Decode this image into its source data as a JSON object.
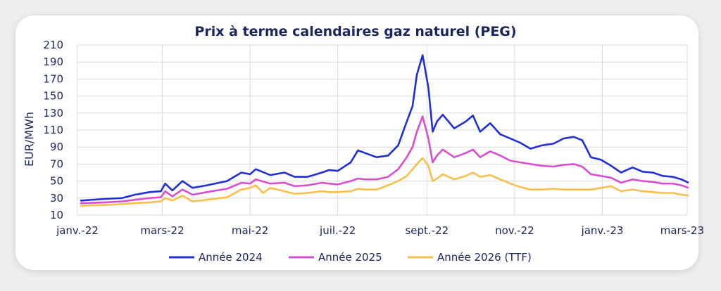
{
  "chart_data": {
    "type": "line",
    "title": "Prix à terme calendaires gaz naturel (PEG)",
    "xlabel": "",
    "ylabel": "EUR/MWh",
    "ylim": [
      10,
      210
    ],
    "yticks": [
      10,
      30,
      50,
      70,
      90,
      110,
      130,
      150,
      170,
      190,
      210
    ],
    "xticks": [
      {
        "date": "2022-01-01",
        "label": "janv.-22"
      },
      {
        "date": "2022-03-01",
        "label": "mars-22"
      },
      {
        "date": "2022-05-01",
        "label": "mai-22"
      },
      {
        "date": "2022-07-01",
        "label": "juil.-22"
      },
      {
        "date": "2022-09-01",
        "label": "sept.-22"
      },
      {
        "date": "2022-11-01",
        "label": "nov.-22"
      },
      {
        "date": "2023-01-01",
        "label": "janv.-23"
      },
      {
        "date": "2023-03-01",
        "label": "mars-23"
      }
    ],
    "grid": true,
    "legend_position": "bottom",
    "series": [
      {
        "name": "Année 2024",
        "color": "#1f2fd8",
        "points": [
          [
            "2022-01-03",
            27
          ],
          [
            "2022-01-20",
            29
          ],
          [
            "2022-02-01",
            30
          ],
          [
            "2022-02-10",
            34
          ],
          [
            "2022-02-20",
            37
          ],
          [
            "2022-02-28",
            38
          ],
          [
            "2022-03-03",
            47
          ],
          [
            "2022-03-08",
            39
          ],
          [
            "2022-03-15",
            50
          ],
          [
            "2022-03-22",
            42
          ],
          [
            "2022-04-01",
            45
          ],
          [
            "2022-04-15",
            50
          ],
          [
            "2022-04-25",
            60
          ],
          [
            "2022-05-01",
            58
          ],
          [
            "2022-05-05",
            64
          ],
          [
            "2022-05-15",
            57
          ],
          [
            "2022-05-25",
            60
          ],
          [
            "2022-06-01",
            55
          ],
          [
            "2022-06-10",
            55
          ],
          [
            "2022-06-20",
            60
          ],
          [
            "2022-06-25",
            63
          ],
          [
            "2022-07-01",
            62
          ],
          [
            "2022-07-10",
            72
          ],
          [
            "2022-07-15",
            86
          ],
          [
            "2022-07-20",
            83
          ],
          [
            "2022-07-28",
            78
          ],
          [
            "2022-08-05",
            80
          ],
          [
            "2022-08-12",
            92
          ],
          [
            "2022-08-18",
            120
          ],
          [
            "2022-08-22",
            138
          ],
          [
            "2022-08-25",
            175
          ],
          [
            "2022-08-29",
            198
          ],
          [
            "2022-09-02",
            160
          ],
          [
            "2022-09-05",
            108
          ],
          [
            "2022-09-08",
            120
          ],
          [
            "2022-09-12",
            128
          ],
          [
            "2022-09-20",
            112
          ],
          [
            "2022-09-28",
            120
          ],
          [
            "2022-10-03",
            127
          ],
          [
            "2022-10-08",
            108
          ],
          [
            "2022-10-15",
            118
          ],
          [
            "2022-10-22",
            105
          ],
          [
            "2022-10-29",
            100
          ],
          [
            "2022-11-05",
            95
          ],
          [
            "2022-11-12",
            88
          ],
          [
            "2022-11-20",
            92
          ],
          [
            "2022-11-28",
            94
          ],
          [
            "2022-12-05",
            100
          ],
          [
            "2022-12-12",
            102
          ],
          [
            "2022-12-18",
            98
          ],
          [
            "2022-12-24",
            78
          ],
          [
            "2022-12-31",
            75
          ],
          [
            "2023-01-07",
            68
          ],
          [
            "2023-01-14",
            60
          ],
          [
            "2023-01-22",
            66
          ],
          [
            "2023-01-29",
            61
          ],
          [
            "2023-02-05",
            60
          ],
          [
            "2023-02-12",
            56
          ],
          [
            "2023-02-19",
            55
          ],
          [
            "2023-02-25",
            52
          ],
          [
            "2023-03-02",
            48
          ]
        ]
      },
      {
        "name": "Année 2025",
        "color": "#d94ed1",
        "points": [
          [
            "2022-01-03",
            24
          ],
          [
            "2022-01-20",
            25
          ],
          [
            "2022-02-01",
            26
          ],
          [
            "2022-02-10",
            28
          ],
          [
            "2022-02-20",
            30
          ],
          [
            "2022-02-28",
            31
          ],
          [
            "2022-03-03",
            38
          ],
          [
            "2022-03-08",
            32
          ],
          [
            "2022-03-15",
            40
          ],
          [
            "2022-03-22",
            34
          ],
          [
            "2022-04-01",
            37
          ],
          [
            "2022-04-15",
            41
          ],
          [
            "2022-04-25",
            48
          ],
          [
            "2022-05-01",
            47
          ],
          [
            "2022-05-05",
            52
          ],
          [
            "2022-05-15",
            47
          ],
          [
            "2022-05-25",
            48
          ],
          [
            "2022-06-01",
            44
          ],
          [
            "2022-06-10",
            45
          ],
          [
            "2022-06-20",
            48
          ],
          [
            "2022-06-25",
            47
          ],
          [
            "2022-07-01",
            46
          ],
          [
            "2022-07-10",
            50
          ],
          [
            "2022-07-15",
            53
          ],
          [
            "2022-07-20",
            52
          ],
          [
            "2022-07-28",
            52
          ],
          [
            "2022-08-05",
            55
          ],
          [
            "2022-08-12",
            64
          ],
          [
            "2022-08-18",
            78
          ],
          [
            "2022-08-22",
            90
          ],
          [
            "2022-08-25",
            108
          ],
          [
            "2022-08-29",
            126
          ],
          [
            "2022-09-02",
            100
          ],
          [
            "2022-09-05",
            72
          ],
          [
            "2022-09-08",
            80
          ],
          [
            "2022-09-12",
            87
          ],
          [
            "2022-09-20",
            78
          ],
          [
            "2022-09-28",
            83
          ],
          [
            "2022-10-03",
            87
          ],
          [
            "2022-10-08",
            78
          ],
          [
            "2022-10-15",
            85
          ],
          [
            "2022-10-22",
            80
          ],
          [
            "2022-10-29",
            74
          ],
          [
            "2022-11-05",
            72
          ],
          [
            "2022-11-12",
            70
          ],
          [
            "2022-11-20",
            68
          ],
          [
            "2022-11-28",
            67
          ],
          [
            "2022-12-05",
            69
          ],
          [
            "2022-12-12",
            70
          ],
          [
            "2022-12-18",
            67
          ],
          [
            "2022-12-24",
            58
          ],
          [
            "2022-12-31",
            56
          ],
          [
            "2023-01-07",
            54
          ],
          [
            "2023-01-14",
            48
          ],
          [
            "2023-01-22",
            52
          ],
          [
            "2023-01-29",
            50
          ],
          [
            "2023-02-05",
            49
          ],
          [
            "2023-02-12",
            47
          ],
          [
            "2023-02-19",
            47
          ],
          [
            "2023-02-25",
            45
          ],
          [
            "2023-03-02",
            42
          ]
        ]
      },
      {
        "name": "Année 2026 (TTF)",
        "color": "#f8bf4c",
        "points": [
          [
            "2022-01-03",
            21
          ],
          [
            "2022-01-20",
            22
          ],
          [
            "2022-02-01",
            23
          ],
          [
            "2022-02-10",
            24
          ],
          [
            "2022-02-20",
            25
          ],
          [
            "2022-02-28",
            26
          ],
          [
            "2022-03-03",
            30
          ],
          [
            "2022-03-08",
            27
          ],
          [
            "2022-03-15",
            33
          ],
          [
            "2022-03-22",
            26
          ],
          [
            "2022-04-01",
            28
          ],
          [
            "2022-04-15",
            31
          ],
          [
            "2022-04-25",
            40
          ],
          [
            "2022-05-01",
            42
          ],
          [
            "2022-05-05",
            45
          ],
          [
            "2022-05-10",
            36
          ],
          [
            "2022-05-15",
            42
          ],
          [
            "2022-05-25",
            38
          ],
          [
            "2022-06-01",
            35
          ],
          [
            "2022-06-10",
            36
          ],
          [
            "2022-06-20",
            38
          ],
          [
            "2022-06-25",
            37
          ],
          [
            "2022-07-01",
            37
          ],
          [
            "2022-07-10",
            38
          ],
          [
            "2022-07-15",
            41
          ],
          [
            "2022-07-20",
            40
          ],
          [
            "2022-07-28",
            40
          ],
          [
            "2022-08-05",
            45
          ],
          [
            "2022-08-12",
            50
          ],
          [
            "2022-08-18",
            56
          ],
          [
            "2022-08-22",
            64
          ],
          [
            "2022-08-25",
            70
          ],
          [
            "2022-08-29",
            77
          ],
          [
            "2022-09-02",
            68
          ],
          [
            "2022-09-05",
            50
          ],
          [
            "2022-09-08",
            53
          ],
          [
            "2022-09-12",
            58
          ],
          [
            "2022-09-20",
            52
          ],
          [
            "2022-09-28",
            56
          ],
          [
            "2022-10-03",
            60
          ],
          [
            "2022-10-08",
            55
          ],
          [
            "2022-10-15",
            57
          ],
          [
            "2022-10-22",
            52
          ],
          [
            "2022-10-29",
            47
          ],
          [
            "2022-11-05",
            43
          ],
          [
            "2022-11-12",
            40
          ],
          [
            "2022-11-20",
            40
          ],
          [
            "2022-11-28",
            41
          ],
          [
            "2022-12-05",
            40
          ],
          [
            "2022-12-12",
            40
          ],
          [
            "2022-12-18",
            40
          ],
          [
            "2022-12-24",
            40
          ],
          [
            "2022-12-31",
            42
          ],
          [
            "2023-01-07",
            44
          ],
          [
            "2023-01-14",
            38
          ],
          [
            "2023-01-22",
            40
          ],
          [
            "2023-01-29",
            38
          ],
          [
            "2023-02-05",
            37
          ],
          [
            "2023-02-12",
            36
          ],
          [
            "2023-02-19",
            36
          ],
          [
            "2023-02-25",
            34
          ],
          [
            "2023-03-02",
            33
          ]
        ]
      }
    ]
  }
}
